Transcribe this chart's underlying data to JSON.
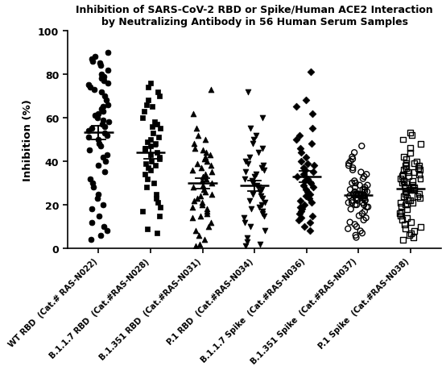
{
  "title_line1": "Inhibition of SARS-CoV-2 RBD or Spike/Human ACE2 Interaction",
  "title_line2": "by Neutralizing Antibody in 56 Human Serum Samples",
  "ylabel": "Inhibition (%)",
  "ylim": [
    0,
    100
  ],
  "yticks": [
    0,
    20,
    40,
    60,
    80,
    100
  ],
  "groups": [
    {
      "label": "WT RBD  (Cat.# RAS-N022)",
      "marker": "o",
      "filled": true,
      "values": [
        90,
        88,
        87,
        86,
        85,
        84,
        82,
        80,
        79,
        78,
        77,
        76,
        75,
        74,
        73,
        72,
        70,
        68,
        66,
        65,
        64,
        63,
        62,
        61,
        60,
        59,
        58,
        57,
        56,
        55,
        54,
        53,
        52,
        51,
        50,
        48,
        47,
        45,
        43,
        42,
        40,
        38,
        35,
        32,
        30,
        28,
        25,
        23,
        20,
        18,
        15,
        12,
        10,
        8,
        6,
        4
      ]
    },
    {
      "label": "B.1.1.7 RBD  (Cat.#RAS-N028)",
      "marker": "s",
      "filled": true,
      "values": [
        76,
        74,
        72,
        70,
        68,
        66,
        65,
        63,
        60,
        58,
        57,
        56,
        55,
        53,
        51,
        50,
        49,
        48,
        47,
        46,
        45,
        44,
        43,
        42,
        41,
        40,
        39,
        38,
        37,
        36,
        34,
        32,
        30,
        28,
        25,
        23,
        21,
        19,
        17,
        15,
        9,
        7
      ]
    },
    {
      "label": "B.1.351 RBD  (Cat.#RAS-N031)",
      "marker": "^",
      "filled": true,
      "values": [
        73,
        62,
        55,
        52,
        50,
        48,
        46,
        45,
        44,
        43,
        42,
        41,
        40,
        39,
        38,
        37,
        36,
        35,
        34,
        33,
        32,
        31,
        30,
        29,
        28,
        27,
        26,
        25,
        24,
        23,
        22,
        21,
        20,
        19,
        18,
        17,
        16,
        15,
        14,
        12,
        10,
        8,
        6,
        4,
        2,
        1
      ]
    },
    {
      "label": "P.1 RBD  (Cat.#RAS-N034)",
      "marker": "v",
      "filled": true,
      "values": [
        72,
        60,
        55,
        52,
        50,
        48,
        46,
        44,
        42,
        40,
        39,
        38,
        37,
        36,
        35,
        34,
        33,
        32,
        31,
        30,
        29,
        28,
        27,
        26,
        25,
        24,
        23,
        22,
        21,
        20,
        19,
        18,
        17,
        16,
        15,
        14,
        12,
        10,
        8,
        5,
        3,
        2,
        1
      ]
    },
    {
      "label": "B.1.1.7 Spike  (Cat.#RAS-N036)",
      "marker": "D",
      "filled": true,
      "values": [
        81,
        68,
        65,
        62,
        55,
        52,
        50,
        48,
        46,
        44,
        42,
        40,
        39,
        38,
        37,
        36,
        35,
        34,
        33,
        32,
        31,
        30,
        29,
        28,
        27,
        26,
        25,
        24,
        23,
        22,
        21,
        20,
        19,
        18,
        17,
        16,
        15,
        14,
        13,
        12,
        10,
        8
      ]
    },
    {
      "label": "B.1.351 Spike  (Cat.#RAS-N037)",
      "marker": "o",
      "filled": false,
      "values": [
        47,
        44,
        42,
        41,
        40,
        39,
        38,
        37,
        36,
        35,
        34,
        33,
        32,
        31,
        30,
        30,
        29,
        29,
        28,
        28,
        27,
        27,
        27,
        26,
        26,
        26,
        25,
        25,
        25,
        25,
        24,
        24,
        24,
        24,
        23,
        23,
        23,
        23,
        22,
        22,
        22,
        22,
        21,
        21,
        21,
        20,
        20,
        20,
        19,
        19,
        18,
        17,
        16,
        15,
        14,
        13,
        12,
        11,
        10,
        9,
        8,
        7,
        6,
        5
      ]
    },
    {
      "label": "P.1 Spike  (Cat.#RAS-N038)",
      "marker": "s",
      "filled": false,
      "values": [
        53,
        52,
        50,
        48,
        46,
        44,
        42,
        41,
        40,
        39,
        39,
        38,
        38,
        37,
        37,
        36,
        36,
        35,
        35,
        34,
        34,
        33,
        33,
        32,
        32,
        31,
        31,
        30,
        30,
        29,
        29,
        28,
        28,
        27,
        27,
        26,
        26,
        25,
        25,
        24,
        24,
        23,
        23,
        22,
        22,
        21,
        21,
        20,
        20,
        19,
        18,
        17,
        16,
        15,
        14,
        13,
        12,
        11,
        10,
        9,
        8,
        7,
        6,
        5,
        4
      ]
    }
  ],
  "marker_color": "#000000",
  "mean_line_color": "#000000",
  "background_color": "#ffffff",
  "title_fontsize": 9.0,
  "axis_fontsize": 9.5,
  "tick_fontsize": 9,
  "label_fontsize": 7.2
}
